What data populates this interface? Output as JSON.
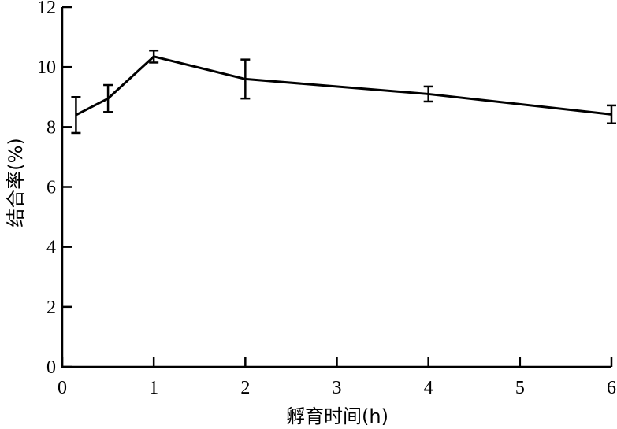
{
  "chart_data": {
    "type": "line",
    "title": "",
    "xlabel": "孵育时间(h)",
    "ylabel": "结合率(%)",
    "xlim": [
      0,
      6
    ],
    "ylim": [
      0,
      12
    ],
    "grid": false,
    "xticks": [
      {
        "label": "0",
        "pos": 0
      },
      {
        "label": "1",
        "pos": 1
      },
      {
        "label": "2",
        "pos": 2
      },
      {
        "label": "3",
        "pos": 3
      },
      {
        "label": "4",
        "pos": 4
      },
      {
        "label": "5",
        "pos": 5
      },
      {
        "label": "6",
        "pos": 6
      }
    ],
    "yticks": [
      0,
      2,
      4,
      6,
      8,
      10,
      12
    ],
    "series": [
      {
        "x": [
          0.15,
          0.5,
          1,
          2,
          4,
          6
        ],
        "y": [
          8.4,
          8.95,
          10.35,
          9.6,
          9.1,
          8.42
        ],
        "err": [
          0.6,
          0.45,
          0.2,
          0.65,
          0.25,
          0.3
        ],
        "color": "#000000"
      }
    ]
  }
}
